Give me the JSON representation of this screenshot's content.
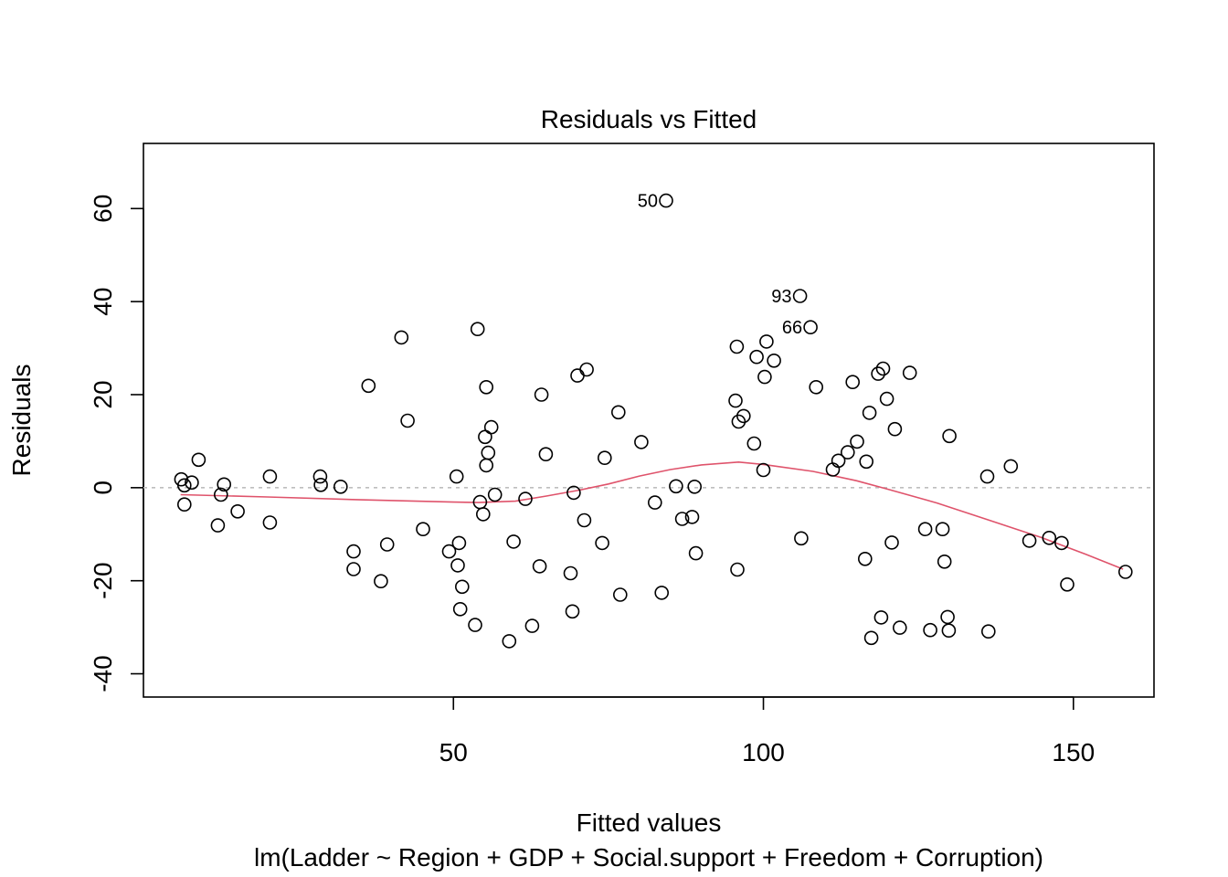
{
  "chart_data": {
    "type": "scatter",
    "title": "Residuals vs Fitted",
    "xlabel": "Fitted values",
    "ylabel": "Residuals",
    "subtitle": "lm(Ladder ~ Region + GDP + Social.support + Freedom + Corruption)",
    "xlim": [
      0,
      163
    ],
    "ylim": [
      -45,
      74
    ],
    "xticks": [
      50,
      100,
      150
    ],
    "yticks": [
      -40,
      -20,
      0,
      20,
      40,
      60
    ],
    "reference_line": {
      "y": 0,
      "style": "dotted",
      "color": "#bebebe"
    },
    "smooth_color": "#df536b",
    "smooth": {
      "x": [
        6,
        20,
        35,
        50,
        54,
        60,
        65,
        70,
        75,
        80,
        85,
        90,
        96,
        100,
        108,
        115,
        120,
        128,
        136,
        145,
        152,
        158
      ],
      "y": [
        -1.5,
        -2,
        -2.6,
        -3.1,
        -3.2,
        -2.9,
        -1.8,
        -0.6,
        0.8,
        2.5,
        3.9,
        4.9,
        5.5,
        5.0,
        3.5,
        1.5,
        -0.3,
        -3.3,
        -6.8,
        -10.8,
        -14.3,
        -17.5
      ]
    },
    "point_labels": [
      {
        "label": "50",
        "x": 84.3,
        "y": 61.7
      },
      {
        "label": "93",
        "x": 105.9,
        "y": 41.2
      },
      {
        "label": "66",
        "x": 107.6,
        "y": 34.5
      }
    ],
    "points": [
      [
        6.1,
        1.8
      ],
      [
        6.6,
        0.5
      ],
      [
        6.6,
        -3.6
      ],
      [
        7.8,
        1.1
      ],
      [
        8.9,
        6.0
      ],
      [
        12.0,
        -8.1
      ],
      [
        12.5,
        -1.5
      ],
      [
        13.0,
        0.7
      ],
      [
        15.2,
        -5.1
      ],
      [
        20.4,
        2.4
      ],
      [
        20.4,
        -7.5
      ],
      [
        28.5,
        2.4
      ],
      [
        28.6,
        0.6
      ],
      [
        31.8,
        0.2
      ],
      [
        33.9,
        -13.7
      ],
      [
        33.9,
        -17.5
      ],
      [
        36.3,
        21.9
      ],
      [
        38.3,
        -20.1
      ],
      [
        39.3,
        -12.2
      ],
      [
        41.6,
        32.3
      ],
      [
        42.6,
        14.4
      ],
      [
        45.1,
        -8.9
      ],
      [
        49.3,
        -13.7
      ],
      [
        50.5,
        2.4
      ],
      [
        50.9,
        -11.9
      ],
      [
        50.7,
        -16.7
      ],
      [
        51.1,
        -26.1
      ],
      [
        51.4,
        -21.3
      ],
      [
        53.5,
        -29.5
      ],
      [
        53.9,
        34.1
      ],
      [
        54.3,
        -3.1
      ],
      [
        54.8,
        -5.7
      ],
      [
        55.1,
        10.9
      ],
      [
        55.3,
        4.8
      ],
      [
        55.6,
        7.5
      ],
      [
        55.3,
        21.6
      ],
      [
        56.1,
        13.0
      ],
      [
        56.7,
        -1.5
      ],
      [
        59.0,
        -33.0
      ],
      [
        59.7,
        -11.6
      ],
      [
        61.6,
        -2.4
      ],
      [
        62.7,
        -29.7
      ],
      [
        63.9,
        -16.9
      ],
      [
        64.2,
        20.0
      ],
      [
        64.9,
        7.2
      ],
      [
        68.9,
        -18.4
      ],
      [
        69.2,
        -26.6
      ],
      [
        69.4,
        -1.1
      ],
      [
        70.0,
        24.1
      ],
      [
        71.1,
        -7.0
      ],
      [
        71.5,
        25.4
      ],
      [
        74.0,
        -11.9
      ],
      [
        74.4,
        6.4
      ],
      [
        76.6,
        16.2
      ],
      [
        76.9,
        -23.0
      ],
      [
        80.3,
        9.8
      ],
      [
        82.5,
        -3.2
      ],
      [
        83.6,
        -22.6
      ],
      [
        84.3,
        61.7
      ],
      [
        85.9,
        0.3
      ],
      [
        86.9,
        -6.7
      ],
      [
        88.5,
        -6.3
      ],
      [
        88.9,
        0.2
      ],
      [
        89.1,
        -14.1
      ],
      [
        95.5,
        18.7
      ],
      [
        95.7,
        30.3
      ],
      [
        95.8,
        -17.6
      ],
      [
        96.0,
        14.2
      ],
      [
        96.8,
        15.4
      ],
      [
        98.5,
        9.5
      ],
      [
        98.9,
        28.1
      ],
      [
        100.0,
        3.8
      ],
      [
        100.2,
        23.8
      ],
      [
        100.5,
        31.4
      ],
      [
        101.7,
        27.3
      ],
      [
        105.9,
        41.2
      ],
      [
        106.1,
        -10.9
      ],
      [
        107.6,
        34.5
      ],
      [
        108.5,
        21.6
      ],
      [
        111.2,
        3.9
      ],
      [
        112.1,
        5.8
      ],
      [
        113.6,
        7.6
      ],
      [
        114.4,
        22.7
      ],
      [
        115.1,
        9.9
      ],
      [
        116.4,
        -15.3
      ],
      [
        116.6,
        5.6
      ],
      [
        117.1,
        16.1
      ],
      [
        117.4,
        -32.3
      ],
      [
        118.5,
        24.5
      ],
      [
        119.0,
        -27.9
      ],
      [
        119.3,
        25.6
      ],
      [
        119.9,
        19.1
      ],
      [
        120.7,
        -11.8
      ],
      [
        121.2,
        12.6
      ],
      [
        122.0,
        -30.1
      ],
      [
        123.6,
        24.7
      ],
      [
        126.1,
        -8.9
      ],
      [
        126.9,
        -30.6
      ],
      [
        128.9,
        -8.9
      ],
      [
        129.2,
        -15.9
      ],
      [
        129.7,
        -27.8
      ],
      [
        129.9,
        -30.7
      ],
      [
        130.0,
        11.1
      ],
      [
        136.1,
        2.4
      ],
      [
        136.3,
        -30.9
      ],
      [
        139.9,
        4.6
      ],
      [
        142.9,
        -11.4
      ],
      [
        146.1,
        -10.8
      ],
      [
        148.1,
        -11.9
      ],
      [
        149.0,
        -20.8
      ],
      [
        158.4,
        -18.1
      ]
    ]
  }
}
